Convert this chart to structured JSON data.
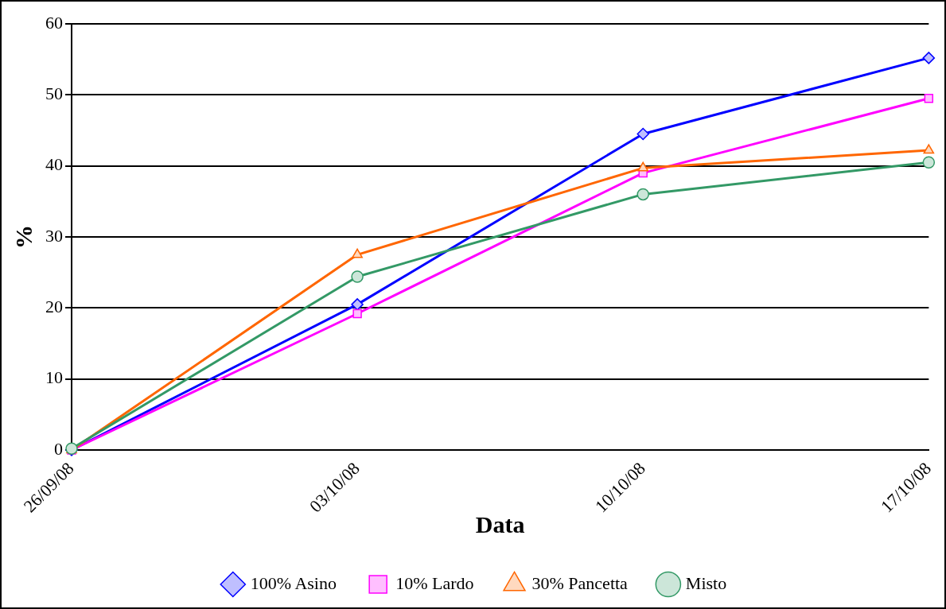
{
  "chart_data": {
    "type": "line",
    "xlabel": "Data",
    "ylabel": "%",
    "categories": [
      "26/09/08",
      "03/10/08",
      "10/10/08",
      "17/10/08"
    ],
    "series": [
      {
        "name": "100% Asino",
        "color": "#0000ff",
        "marker": "diamond",
        "values": [
          0,
          20.5,
          44.5,
          55.2
        ]
      },
      {
        "name": "10% Lardo",
        "color": "#ff00ff",
        "marker": "square",
        "values": [
          0,
          19.2,
          39,
          49.5
        ]
      },
      {
        "name": "30% Pancetta",
        "color": "#ff6600",
        "marker": "triangle",
        "values": [
          0,
          27.5,
          39.7,
          42.2
        ]
      },
      {
        "name": "Misto",
        "color": "#339966",
        "marker": "circle",
        "values": [
          0.2,
          24.4,
          36,
          40.5
        ]
      }
    ],
    "ylim": [
      0,
      60
    ],
    "yticks": [
      0,
      10,
      20,
      30,
      40,
      50,
      60
    ],
    "grid": "y",
    "legend": "bottom",
    "line_style": "solid"
  }
}
